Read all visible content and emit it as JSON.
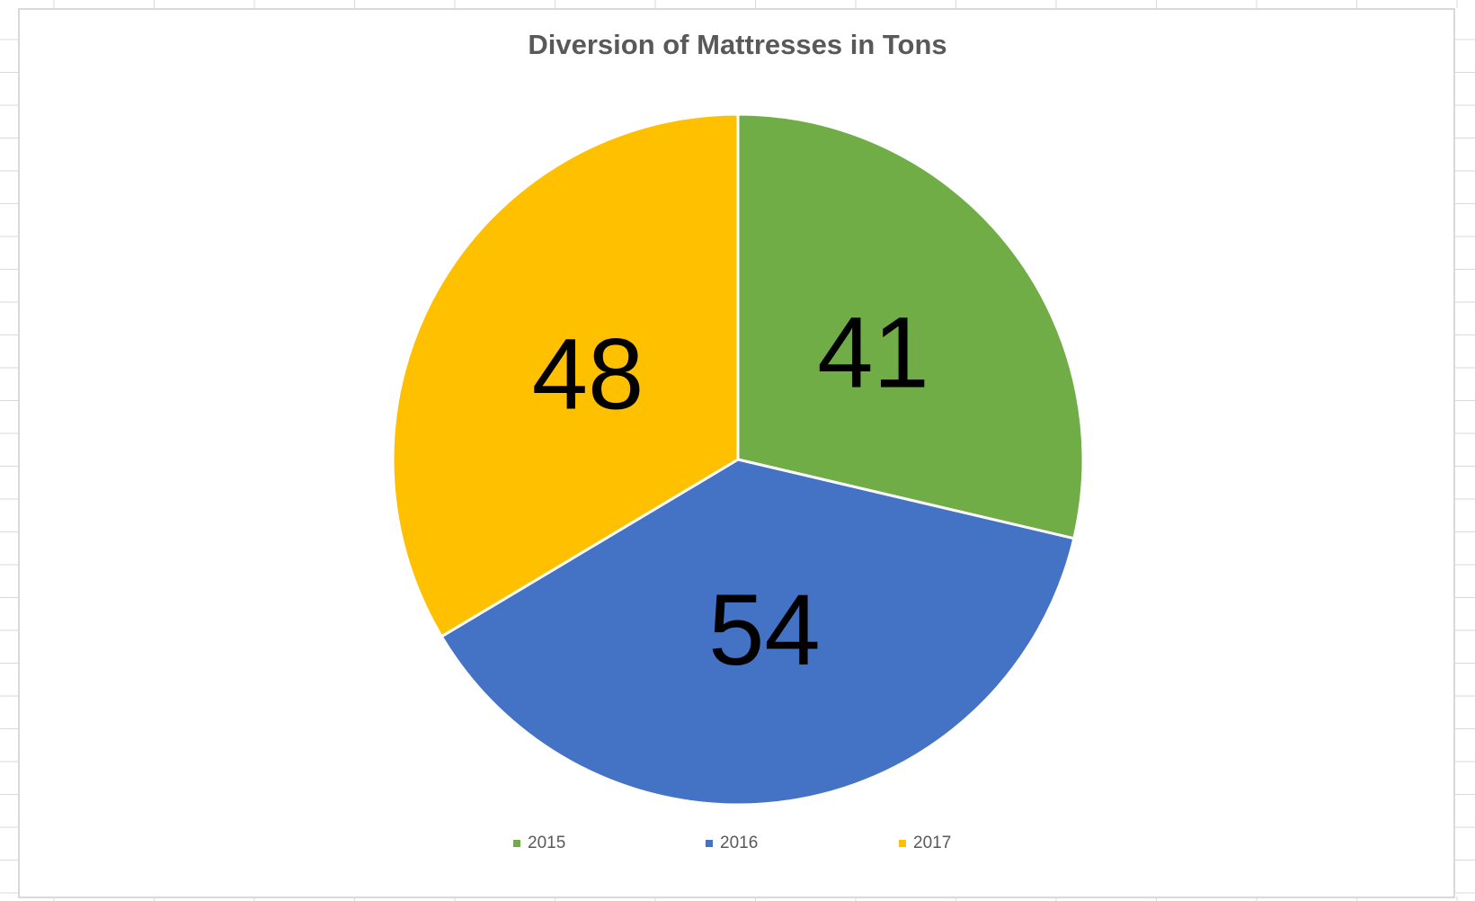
{
  "chart_data": {
    "type": "pie",
    "title": "Diversion of Mattresses in Tons",
    "categories": [
      "2015",
      "2016",
      "2017"
    ],
    "values": [
      41,
      54,
      48
    ],
    "colors": [
      "#70ad47",
      "#4472c4",
      "#ffc000"
    ],
    "data_labels": [
      "41",
      "54",
      "48"
    ],
    "legend": "bottom"
  }
}
